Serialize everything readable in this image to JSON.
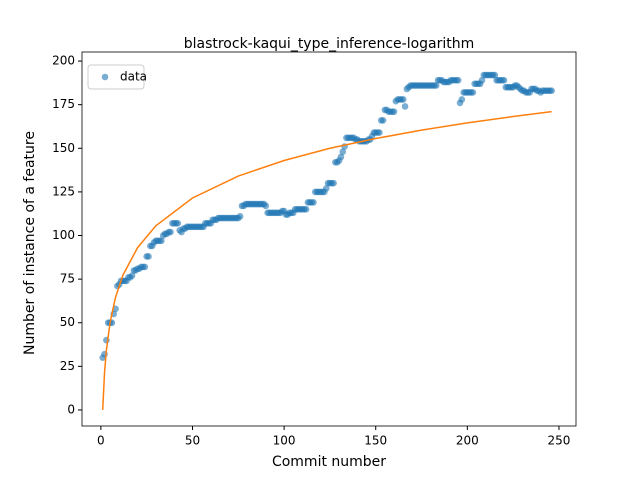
{
  "chart_data": {
    "type": "scatter",
    "title": "blastrock-kaqui_type_inference-logarithm",
    "x_label": "Commit number",
    "y_label": "Number of instance of a feature",
    "xlim": [
      -10.3,
      259.3
    ],
    "ylim": [
      -9.2,
      205.2
    ],
    "xticks": [
      0,
      50,
      100,
      150,
      200,
      250
    ],
    "yticks": [
      0,
      25,
      50,
      75,
      100,
      125,
      150,
      175,
      200
    ],
    "legend": "upper left",
    "series": [
      {
        "name": "data",
        "color": "#1f77b4",
        "x": [
          1,
          2,
          3,
          4,
          5,
          6,
          7,
          8,
          9,
          10,
          11,
          12,
          13,
          14,
          15,
          16,
          17,
          18,
          19,
          20,
          21,
          22,
          23,
          24,
          25,
          26,
          27,
          28,
          29,
          30,
          31,
          32,
          33,
          34,
          35,
          36,
          37,
          38,
          39,
          40,
          41,
          42,
          43,
          44,
          45,
          46,
          47,
          48,
          49,
          50,
          51,
          52,
          53,
          54,
          55,
          56,
          57,
          58,
          59,
          60,
          61,
          62,
          63,
          64,
          65,
          66,
          67,
          68,
          69,
          70,
          71,
          72,
          73,
          74,
          75,
          76,
          77,
          78,
          79,
          80,
          81,
          82,
          83,
          84,
          85,
          86,
          87,
          88,
          89,
          90,
          91,
          92,
          93,
          94,
          95,
          96,
          97,
          98,
          99,
          100,
          101,
          102,
          103,
          104,
          105,
          106,
          107,
          108,
          109,
          110,
          111,
          112,
          113,
          114,
          115,
          116,
          117,
          118,
          119,
          120,
          121,
          122,
          123,
          124,
          125,
          126,
          127,
          128,
          129,
          130,
          131,
          132,
          133,
          134,
          135,
          136,
          137,
          138,
          139,
          140,
          141,
          142,
          143,
          144,
          145,
          146,
          147,
          148,
          149,
          150,
          151,
          152,
          153,
          154,
          155,
          156,
          157,
          158,
          159,
          160,
          161,
          162,
          163,
          164,
          165,
          166,
          167,
          168,
          169,
          170,
          171,
          172,
          173,
          174,
          175,
          176,
          177,
          178,
          179,
          180,
          181,
          182,
          183,
          184,
          185,
          186,
          187,
          188,
          189,
          190,
          191,
          192,
          193,
          194,
          195,
          196,
          197,
          198,
          199,
          200,
          201,
          202,
          203,
          204,
          205,
          206,
          207,
          208,
          209,
          210,
          211,
          212,
          213,
          214,
          215,
          216,
          217,
          218,
          219,
          220,
          221,
          222,
          223,
          224,
          225,
          226,
          227,
          228,
          229,
          230,
          231,
          232,
          233,
          234,
          235,
          236,
          237,
          238,
          239,
          240,
          241,
          242,
          243,
          244,
          245,
          246
        ],
        "values": [
          30,
          32,
          40,
          50,
          50,
          50,
          55,
          58,
          71,
          72,
          74,
          74,
          74,
          74,
          76,
          76,
          77,
          80,
          80,
          81,
          81,
          82,
          82,
          82,
          88,
          88,
          94,
          94,
          96,
          97,
          97,
          97,
          97,
          100,
          101,
          101,
          102,
          102,
          107,
          107,
          107,
          107,
          103,
          102,
          104,
          104,
          105,
          105,
          105,
          105,
          105,
          105,
          105,
          105,
          105,
          105,
          107,
          107,
          107,
          107,
          109,
          109,
          109,
          110,
          110,
          110,
          110,
          110,
          110,
          110,
          110,
          110,
          110,
          110,
          110,
          111,
          117,
          117,
          118,
          118,
          118,
          118,
          118,
          118,
          118,
          118,
          118,
          118,
          118,
          117,
          113,
          113,
          113,
          113,
          113,
          113,
          113,
          113,
          114,
          114,
          112,
          112,
          113,
          113,
          113,
          115,
          115,
          115,
          115,
          115,
          115,
          115,
          119,
          119,
          119,
          119,
          125,
          125,
          125,
          125,
          125,
          125,
          127,
          130,
          130,
          130,
          130,
          142,
          142,
          143,
          145,
          148,
          151,
          156,
          156,
          156,
          156,
          156,
          155,
          155,
          154,
          154,
          154,
          154,
          154,
          155,
          155,
          157,
          159,
          159,
          159,
          159,
          166,
          166,
          172,
          172,
          171,
          171,
          171,
          171,
          177,
          178,
          178,
          178,
          178,
          174,
          184,
          185,
          186,
          186,
          186,
          186,
          186,
          186,
          186,
          186,
          186,
          186,
          186,
          186,
          186,
          186,
          186,
          189,
          189,
          189,
          188,
          188,
          188,
          188,
          189,
          189,
          189,
          189,
          189,
          176,
          178,
          182,
          182,
          182,
          182,
          182,
          182,
          187,
          187,
          187,
          187,
          189,
          192,
          192,
          192,
          192,
          192,
          192,
          192,
          189,
          189,
          189,
          189,
          189,
          185,
          185,
          185,
          185,
          185,
          186,
          186,
          185,
          184,
          183,
          183,
          182,
          182,
          182,
          184,
          184,
          184,
          183,
          183,
          182,
          183,
          183,
          183,
          183,
          183,
          183
        ]
      },
      {
        "type": "line",
        "color": "#ff7f0e",
        "x": [
          1,
          2,
          3,
          5,
          8,
          12,
          20,
          30,
          50,
          75,
          100,
          125,
          150,
          175,
          200,
          225,
          246
        ],
        "values": [
          0,
          21.5,
          34.1,
          50.0,
          64.6,
          77.2,
          93.0,
          105.6,
          121.5,
          134.1,
          143.0,
          150.0,
          155.6,
          160.4,
          164.6,
          168.2,
          171.0
        ]
      }
    ]
  }
}
